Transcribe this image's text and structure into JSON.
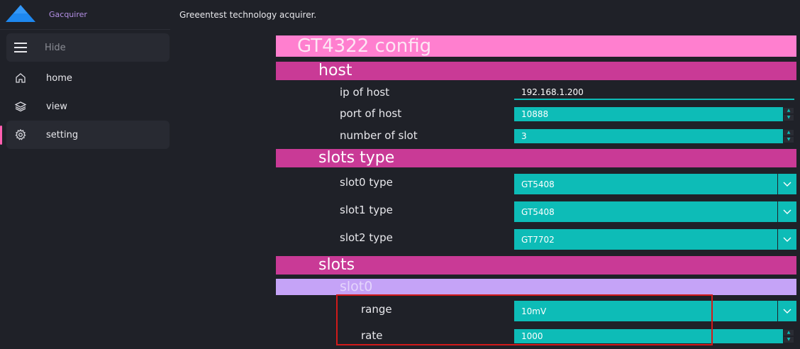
{
  "app": {
    "name": "Gacquirer",
    "header_title": "Greeentest technology acquirer."
  },
  "sidebar": {
    "hide_label": "Hide",
    "items": [
      {
        "label": "home",
        "icon": "home-icon"
      },
      {
        "label": "view",
        "icon": "layers-icon"
      },
      {
        "label": "setting",
        "icon": "gear-icon",
        "active": true
      }
    ]
  },
  "config": {
    "title": "GT4322 config",
    "host": {
      "title": "host",
      "ip_label": "ip of host",
      "ip_value": "192.168.1.200",
      "port_label": "port of host",
      "port_value": "10888",
      "slot_count_label": "number of slot",
      "slot_count_value": "3"
    },
    "slots_type": {
      "title": "slots type",
      "items": [
        {
          "label": "slot0 type",
          "value": "GT5408"
        },
        {
          "label": "slot1 type",
          "value": "GT5408"
        },
        {
          "label": "slot2 type",
          "value": "GT7702"
        }
      ]
    },
    "slots": {
      "title": "slots",
      "slot0": {
        "title": "slot0",
        "range_label": "range",
        "range_value": "10mV",
        "rate_label": "rate",
        "rate_value": "1000"
      }
    }
  },
  "colors": {
    "background": "#1f2128",
    "accent_teal": "#0dbcb7",
    "pink_light": "#ff7fcf",
    "pink_dark": "#c93a96",
    "lavender": "#c5a3f7",
    "brand_purple": "#b48fe6",
    "logo_blue": "#1e88f0",
    "highlight_red": "#d11a1a"
  }
}
